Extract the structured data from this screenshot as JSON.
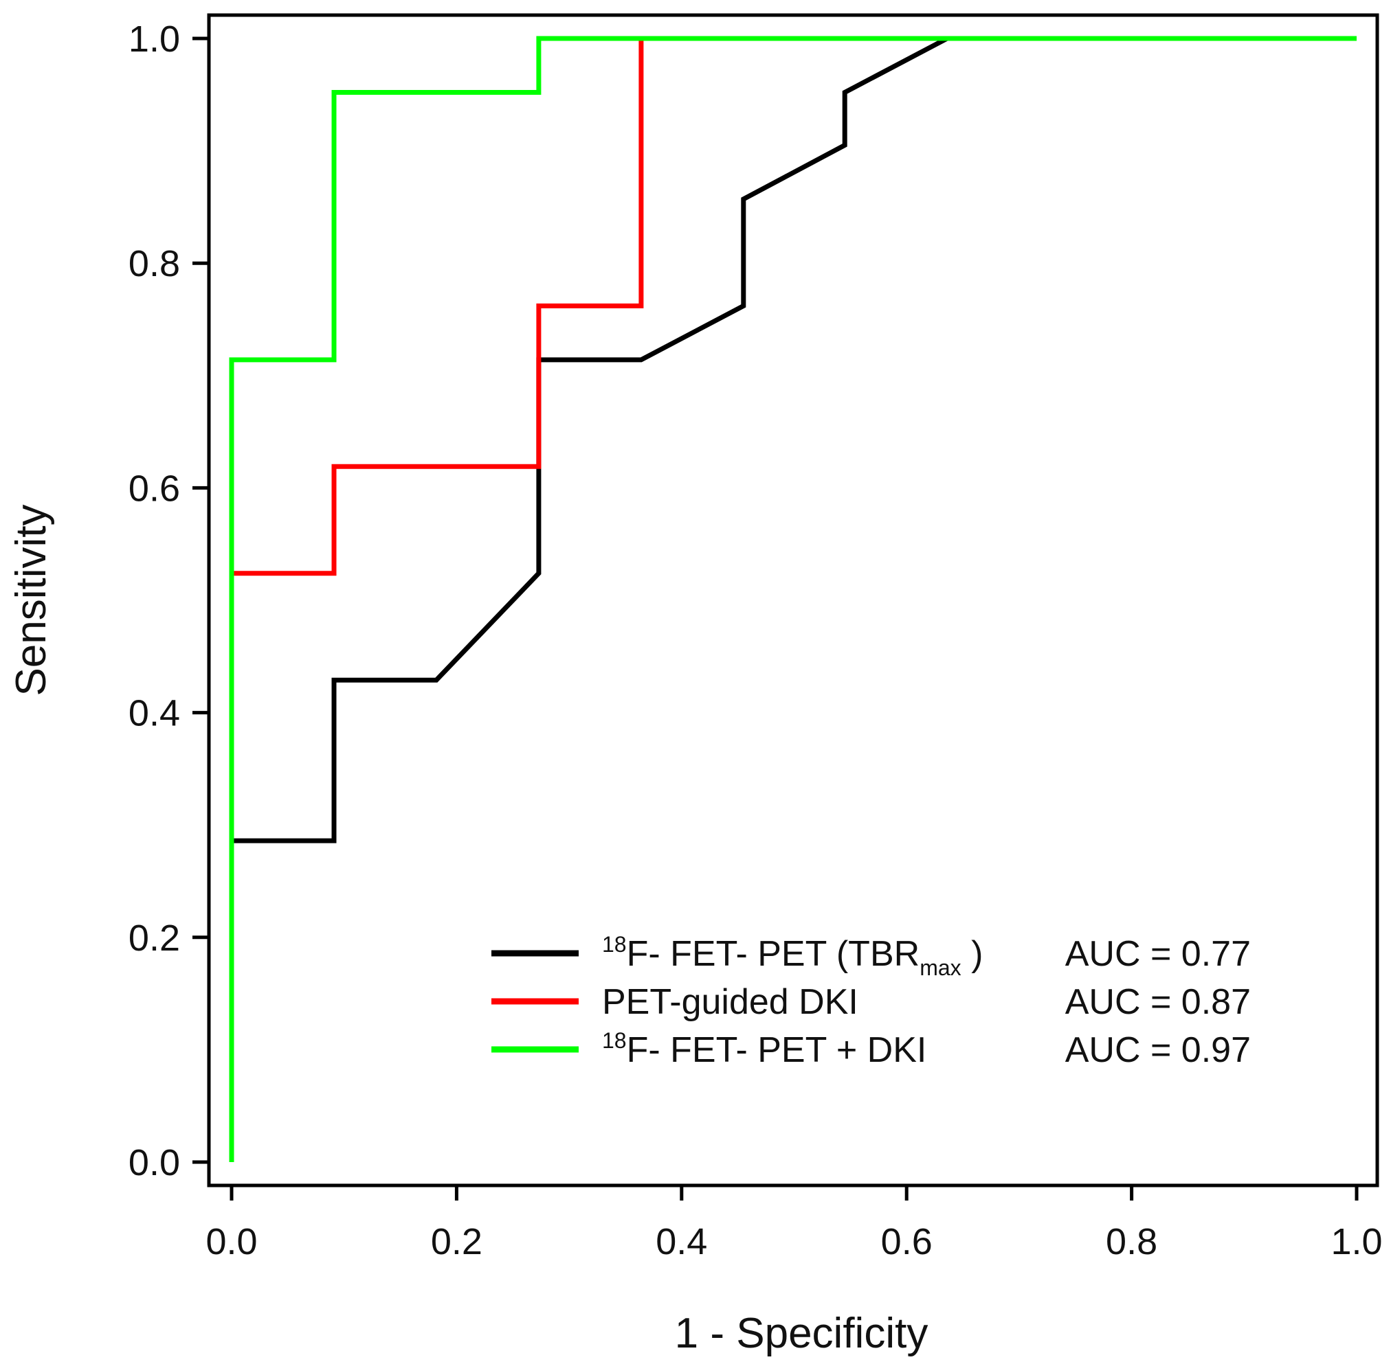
{
  "chart_data": {
    "type": "line",
    "xlabel": "1 - Specificity",
    "ylabel": "Sensitivity",
    "xlim": [
      0.0,
      1.0
    ],
    "ylim": [
      0.0,
      1.0
    ],
    "x_ticks": [
      "0.0",
      "0.2",
      "0.4",
      "0.6",
      "0.8",
      "1.0"
    ],
    "y_ticks": [
      "0.0",
      "0.2",
      "0.4",
      "0.6",
      "0.8",
      "1.0"
    ],
    "grid": false,
    "legend_position": "bottom-right",
    "series": [
      {
        "name": "18F- FET- PET (TBRmax )",
        "legend": {
          "prefix_sup": "18",
          "main": "F- FET- PET (TBR",
          "sub": "max",
          "suffix": " )"
        },
        "auc_label": "AUC = 0.77",
        "color": "#000000",
        "points": [
          [
            0.0,
            0.0
          ],
          [
            0.0,
            0.286
          ],
          [
            0.091,
            0.286
          ],
          [
            0.091,
            0.429
          ],
          [
            0.182,
            0.429
          ],
          [
            0.273,
            0.524
          ],
          [
            0.273,
            0.714
          ],
          [
            0.364,
            0.714
          ],
          [
            0.455,
            0.762
          ],
          [
            0.455,
            0.857
          ],
          [
            0.545,
            0.905
          ],
          [
            0.545,
            0.952
          ],
          [
            0.636,
            1.0
          ],
          [
            1.0,
            1.0
          ]
        ]
      },
      {
        "name": "PET-guided DKI",
        "legend": {
          "prefix_sup": "",
          "main": "PET-guided DKI",
          "sub": "",
          "suffix": ""
        },
        "auc_label": "AUC = 0.87",
        "color": "#ff0000",
        "points": [
          [
            0.0,
            0.0
          ],
          [
            0.0,
            0.524
          ],
          [
            0.091,
            0.524
          ],
          [
            0.091,
            0.619
          ],
          [
            0.273,
            0.619
          ],
          [
            0.273,
            0.762
          ],
          [
            0.364,
            0.762
          ],
          [
            0.364,
            1.0
          ],
          [
            1.0,
            1.0
          ]
        ]
      },
      {
        "name": "18F- FET- PET + DKI",
        "legend": {
          "prefix_sup": "18",
          "main": "F- FET- PET + DKI",
          "sub": "",
          "suffix": ""
        },
        "auc_label": "AUC = 0.97",
        "color": "#00ff00",
        "points": [
          [
            0.0,
            0.0
          ],
          [
            0.0,
            0.714
          ],
          [
            0.091,
            0.714
          ],
          [
            0.091,
            0.952
          ],
          [
            0.273,
            0.952
          ],
          [
            0.273,
            1.0
          ],
          [
            1.0,
            1.0
          ]
        ]
      }
    ]
  }
}
